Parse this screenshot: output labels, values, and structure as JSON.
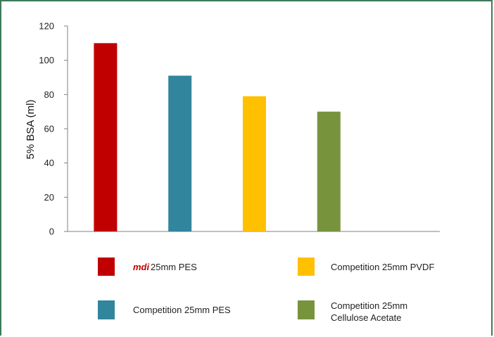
{
  "chart_data": {
    "type": "bar",
    "ylabel": "5% BSA (ml)",
    "ylim": [
      0,
      120
    ],
    "yticks": [
      0,
      20,
      40,
      60,
      80,
      100,
      120
    ],
    "grid": false,
    "legend_position": "bottom",
    "series": [
      {
        "name_brand": "mdi",
        "name": "25mm PES",
        "value": 110,
        "color": "#c00000"
      },
      {
        "name": "Competition 25mm PES",
        "value": 91,
        "color": "#31859c"
      },
      {
        "name": "Competition 25mm PVDF",
        "value": 79,
        "color": "#ffc000"
      },
      {
        "name_lines": [
          "Competition 25mm",
          "Cellulose Acetate"
        ],
        "name": "Competition 25mm Cellulose Acetate",
        "value": 70,
        "color": "#77933c"
      }
    ]
  },
  "colors": {
    "frame": "#3d7a5c",
    "axis": "#808080"
  }
}
